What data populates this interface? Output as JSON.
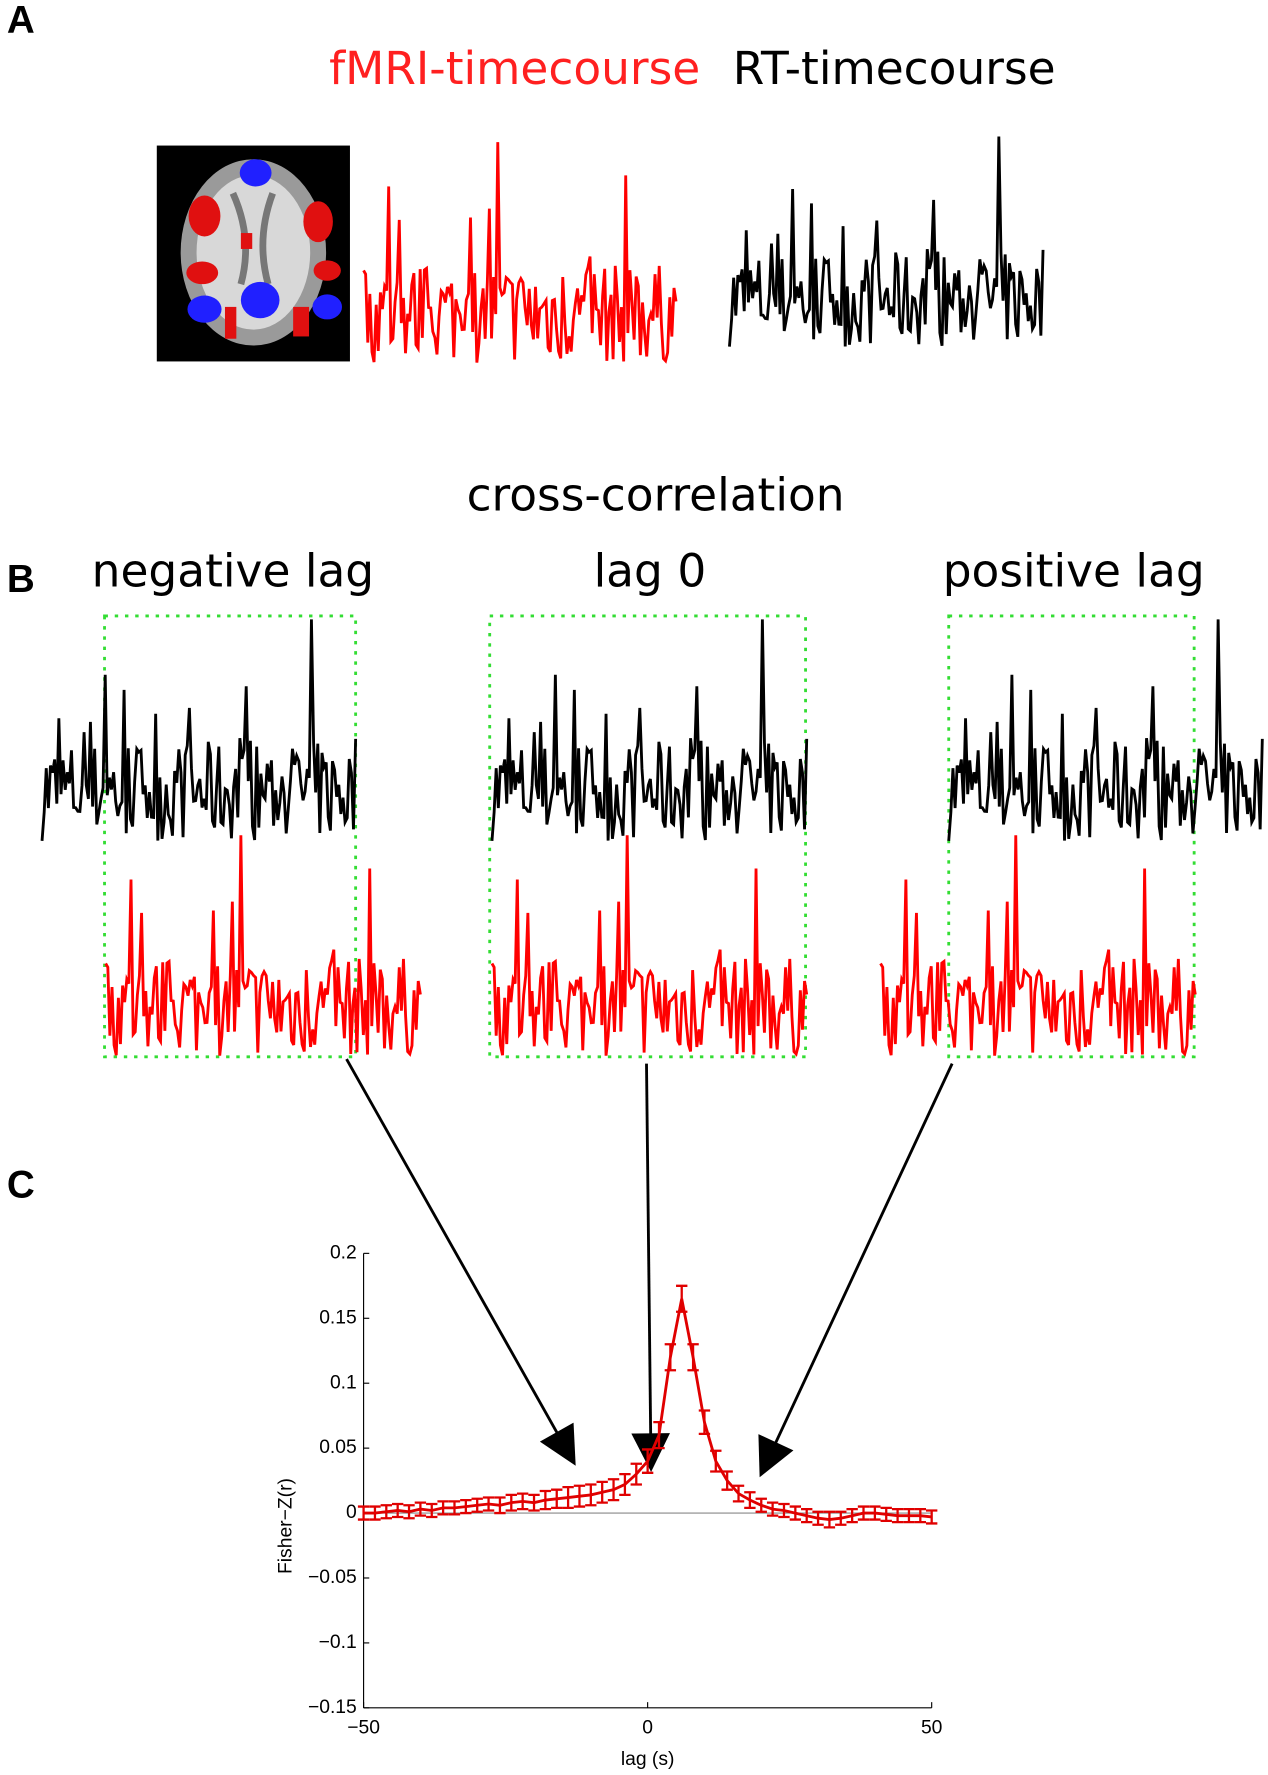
{
  "panels": {
    "a": {
      "label": "A",
      "fmri_title": "fMRI-timecourse",
      "rt_title": "RT-timecourse"
    },
    "b": {
      "label": "B",
      "title": "cross-correlation",
      "negative": "negative lag",
      "zero": "lag 0",
      "positive": "positive lag"
    },
    "c": {
      "label": "C"
    }
  },
  "chart_data": {
    "type": "line",
    "xlabel": "lag (s)",
    "ylabel": "Fisher−Z(r)",
    "x": [
      -50,
      -48,
      -46,
      -44,
      -42,
      -40,
      -38,
      -36,
      -34,
      -32,
      -30,
      -28,
      -26,
      -24,
      -22,
      -20,
      -18,
      -16,
      -14,
      -12,
      -10,
      -8,
      -6,
      -4,
      -2,
      0,
      2,
      4,
      6,
      8,
      10,
      12,
      14,
      16,
      18,
      20,
      22,
      24,
      26,
      28,
      30,
      32,
      34,
      36,
      38,
      40,
      42,
      44,
      46,
      48,
      50
    ],
    "series": [
      {
        "color": "#e00000",
        "values": [
          0,
          0,
          0.001,
          0.002,
          0.001,
          0.003,
          0.002,
          0.004,
          0.004,
          0.005,
          0.006,
          0.007,
          0.006,
          0.008,
          0.009,
          0.008,
          0.01,
          0.011,
          0.012,
          0.013,
          0.014,
          0.016,
          0.018,
          0.022,
          0.03,
          0.04,
          0.06,
          0.12,
          0.165,
          0.12,
          0.07,
          0.04,
          0.025,
          0.015,
          0.01,
          0.006,
          0.003,
          0.002,
          0,
          -0.002,
          -0.004,
          -0.005,
          -0.004,
          -0.002,
          0,
          0,
          -0.001,
          -0.002,
          -0.002,
          -0.002,
          -0.003
        ],
        "errors": [
          0.005,
          0.005,
          0.005,
          0.005,
          0.005,
          0.005,
          0.005,
          0.005,
          0.005,
          0.005,
          0.005,
          0.005,
          0.006,
          0.006,
          0.006,
          0.006,
          0.007,
          0.007,
          0.008,
          0.008,
          0.008,
          0.008,
          0.008,
          0.008,
          0.008,
          0.009,
          0.01,
          0.01,
          0.01,
          0.01,
          0.009,
          0.008,
          0.007,
          0.006,
          0.006,
          0.005,
          0.005,
          0.005,
          0.005,
          0.005,
          0.005,
          0.006,
          0.005,
          0.005,
          0.005,
          0.005,
          0.005,
          0.005,
          0.005,
          0.005,
          0.005
        ]
      }
    ],
    "xlim": [
      -50,
      50
    ],
    "xticks": [
      {
        "value": -50,
        "label": "−50"
      },
      0,
      50
    ],
    "ylim": [
      -0.15,
      0.2
    ],
    "yticks": [
      {
        "value": -0.15,
        "label": "−0.15"
      },
      {
        "value": -0.1,
        "label": "−0.1"
      },
      {
        "value": -0.05,
        "label": "−0.05"
      },
      0,
      0.05,
      0.1,
      0.15,
      0.2
    ],
    "zero_line": true
  }
}
